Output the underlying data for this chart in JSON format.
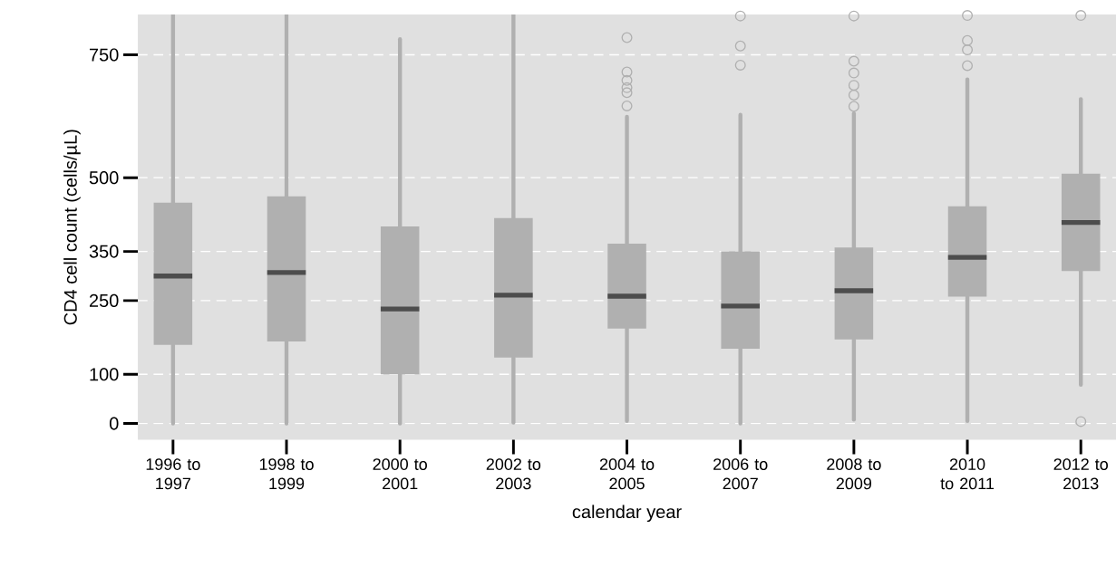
{
  "chart_data": {
    "type": "box",
    "xlabel": "calendar year",
    "ylabel": "CD4 cell count (cells/µL)",
    "categories": [
      "1996 to 1997",
      "1998 to 1999",
      "2000 to 2001",
      "2002 to 2003",
      "2004 to 2005",
      "2006 to 2007",
      "2008 to 2009",
      "2010 to 2011",
      "2012 to 2013"
    ],
    "color": "#b0b0b0",
    "marker": "circle",
    "grid": "y",
    "ylim": [
      -33,
      832
    ],
    "yticks": [
      0,
      100,
      250,
      350,
      500,
      750
    ],
    "boxes": [
      {
        "low": 0,
        "q1": 160,
        "median": 300,
        "q3": 449,
        "high": 832
      },
      {
        "low": 0,
        "q1": 167,
        "median": 307,
        "q3": 462,
        "high": 832
      },
      {
        "low": 0,
        "q1": 100,
        "median": 233,
        "q3": 401,
        "high": 782
      },
      {
        "low": 2,
        "q1": 134,
        "median": 261,
        "q3": 418,
        "high": 832
      },
      {
        "low": 5,
        "q1": 193,
        "median": 259,
        "q3": 366,
        "high": 624,
        "outliers": [
          785,
          715,
          698,
          683,
          673,
          646
        ]
      },
      {
        "low": 0,
        "q1": 152,
        "median": 239,
        "q3": 350,
        "high": 628,
        "outliers": [
          829,
          768,
          729
        ]
      },
      {
        "low": 8,
        "q1": 171,
        "median": 270,
        "q3": 358,
        "high": 631,
        "outliers": [
          829,
          737,
          713,
          688,
          668,
          645
        ]
      },
      {
        "low": 5,
        "q1": 258,
        "median": 338,
        "q3": 442,
        "high": 700,
        "outliers": [
          830,
          779,
          760,
          728
        ]
      },
      {
        "low": 79,
        "q1": 310,
        "median": 409,
        "q3": 508,
        "high": 660,
        "outliers": [
          830,
          4
        ]
      }
    ]
  }
}
